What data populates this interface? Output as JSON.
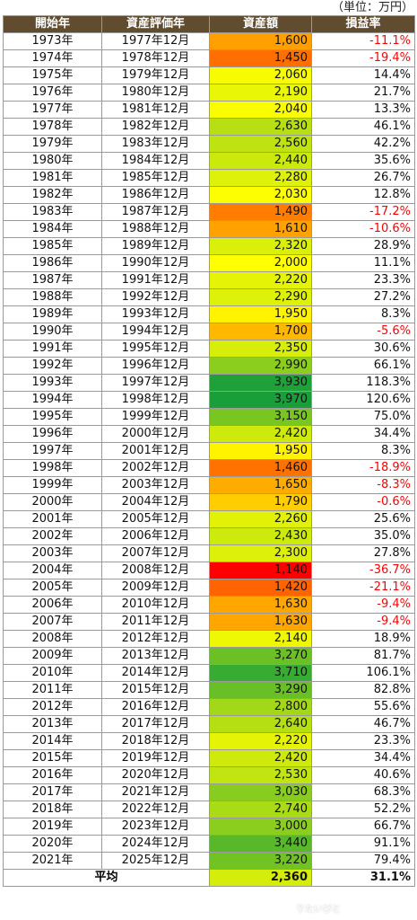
{
  "unit_label": "（単位：万円）",
  "headers": [
    "開始年",
    "資産評価年",
    "資産額",
    "損益率"
  ],
  "average": {
    "label": "平均",
    "asset": "2,360",
    "rate": "31.1%"
  },
  "watermark": "りたいびと",
  "colors": {
    "header_bg": "#614c30",
    "negative_text": "#ff0000",
    "color_scale": [
      "#ff0000",
      "#ff9900",
      "#ffff00",
      "#1a9e3a"
    ],
    "scale_min": 1140,
    "scale_mid": 2000,
    "scale_max": 3970
  },
  "chart_data": {
    "type": "table",
    "columns": [
      "開始年",
      "資産評価年",
      "資産額",
      "損益率"
    ],
    "rows": [
      [
        "1973年",
        "1977年12月",
        1600,
        "-11.1%"
      ],
      [
        "1974年",
        "1978年12月",
        1450,
        "-19.4%"
      ],
      [
        "1975年",
        "1979年12月",
        2060,
        "14.4%"
      ],
      [
        "1976年",
        "1980年12月",
        2190,
        "21.7%"
      ],
      [
        "1977年",
        "1981年12月",
        2040,
        "13.3%"
      ],
      [
        "1978年",
        "1982年12月",
        2630,
        "46.1%"
      ],
      [
        "1979年",
        "1983年12月",
        2560,
        "42.2%"
      ],
      [
        "1980年",
        "1984年12月",
        2440,
        "35.6%"
      ],
      [
        "1981年",
        "1985年12月",
        2280,
        "26.7%"
      ],
      [
        "1982年",
        "1986年12月",
        2030,
        "12.8%"
      ],
      [
        "1983年",
        "1987年12月",
        1490,
        "-17.2%"
      ],
      [
        "1984年",
        "1988年12月",
        1610,
        "-10.6%"
      ],
      [
        "1985年",
        "1989年12月",
        2320,
        "28.9%"
      ],
      [
        "1986年",
        "1990年12月",
        2000,
        "11.1%"
      ],
      [
        "1987年",
        "1991年12月",
        2220,
        "23.3%"
      ],
      [
        "1988年",
        "1992年12月",
        2290,
        "27.2%"
      ],
      [
        "1989年",
        "1993年12月",
        1950,
        "8.3%"
      ],
      [
        "1990年",
        "1994年12月",
        1700,
        "-5.6%"
      ],
      [
        "1991年",
        "1995年12月",
        2350,
        "30.6%"
      ],
      [
        "1992年",
        "1996年12月",
        2990,
        "66.1%"
      ],
      [
        "1993年",
        "1997年12月",
        3930,
        "118.3%"
      ],
      [
        "1994年",
        "1998年12月",
        3970,
        "120.6%"
      ],
      [
        "1995年",
        "1999年12月",
        3150,
        "75.0%"
      ],
      [
        "1996年",
        "2000年12月",
        2420,
        "34.4%"
      ],
      [
        "1997年",
        "2001年12月",
        1950,
        "8.3%"
      ],
      [
        "1998年",
        "2002年12月",
        1460,
        "-18.9%"
      ],
      [
        "1999年",
        "2003年12月",
        1650,
        "-8.3%"
      ],
      [
        "2000年",
        "2004年12月",
        1790,
        "-0.6%"
      ],
      [
        "2001年",
        "2005年12月",
        2260,
        "25.6%"
      ],
      [
        "2002年",
        "2006年12月",
        2430,
        "35.0%"
      ],
      [
        "2003年",
        "2007年12月",
        2300,
        "27.8%"
      ],
      [
        "2004年",
        "2008年12月",
        1140,
        "-36.7%"
      ],
      [
        "2005年",
        "2009年12月",
        1420,
        "-21.1%"
      ],
      [
        "2006年",
        "2010年12月",
        1630,
        "-9.4%"
      ],
      [
        "2007年",
        "2011年12月",
        1630,
        "-9.4%"
      ],
      [
        "2008年",
        "2012年12月",
        2140,
        "18.9%"
      ],
      [
        "2009年",
        "2013年12月",
        3270,
        "81.7%"
      ],
      [
        "2010年",
        "2014年12月",
        3710,
        "106.1%"
      ],
      [
        "2011年",
        "2015年12月",
        3290,
        "82.8%"
      ],
      [
        "2012年",
        "2016年12月",
        2800,
        "55.6%"
      ],
      [
        "2013年",
        "2017年12月",
        2640,
        "46.7%"
      ],
      [
        "2014年",
        "2018年12月",
        2220,
        "23.3%"
      ],
      [
        "2015年",
        "2019年12月",
        2420,
        "34.4%"
      ],
      [
        "2016年",
        "2020年12月",
        2530,
        "40.6%"
      ],
      [
        "2017年",
        "2021年12月",
        3030,
        "68.3%"
      ],
      [
        "2018年",
        "2022年12月",
        2740,
        "52.2%"
      ],
      [
        "2019年",
        "2023年12月",
        3000,
        "66.7%"
      ],
      [
        "2020年",
        "2024年12月",
        3440,
        "91.1%"
      ],
      [
        "2021年",
        "2025年12月",
        3220,
        "79.4%"
      ]
    ]
  }
}
